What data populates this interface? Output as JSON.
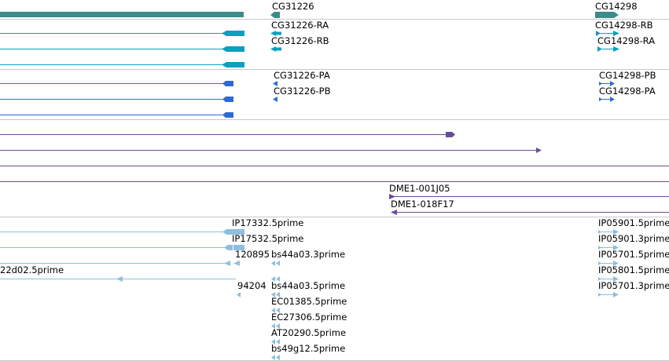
{
  "colors": {
    "gene": "#3d8b8b",
    "mrna": "#0aa0c0",
    "protein": "#2e6ad6",
    "clone": "#6a4c9c",
    "est": "#8cbfe0",
    "separator": "#c8c8c8"
  },
  "tracks": {
    "gene": {
      "labels": [
        "CG31226",
        "CG14298"
      ]
    },
    "transcripts": {
      "labels": [
        "CG31226-RA",
        "CG31226-RB",
        "CG14298-RB",
        "CG14298-RA"
      ]
    },
    "proteins": {
      "labels": [
        "CG31226-PA",
        "CG31226-PB",
        "CG14298-PB",
        "CG14298-PA"
      ]
    },
    "clones": {
      "labels": [
        "DME1-001J05",
        "DME1-018F17"
      ]
    },
    "ests": {
      "labels": [
        "IP17332.5prime",
        "IP17532.5prime",
        "120895",
        "bs44a03.3prime",
        "22d02.5prime",
        "94204",
        "bs44a03.5prime",
        "EC01385.5prime",
        "EC27306.5prime",
        "AT20290.5prime",
        "bs49g12.5prime",
        "IP05901.5prime",
        "IP05901.3prime",
        "IP05701.5prime",
        "IP05801.5prime",
        "IP05701.3prime"
      ]
    }
  }
}
